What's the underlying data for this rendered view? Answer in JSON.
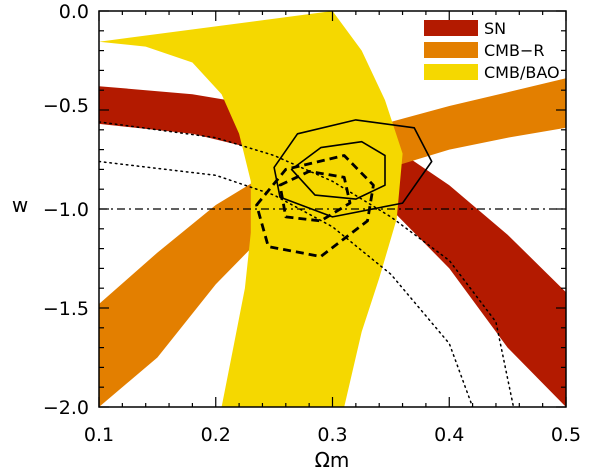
{
  "chart_data": {
    "type": "area",
    "title": "",
    "xlabel": "Ωm",
    "ylabel": "w",
    "xlim": [
      0.1,
      0.5
    ],
    "ylim": [
      -2.0,
      0.0
    ],
    "x_ticks": [
      "0.1",
      "0.2",
      "0.3",
      "0.4",
      "0.5"
    ],
    "y_ticks": [
      "0.0",
      "−0.5",
      "−1.0",
      "−1.5",
      "−2.0"
    ],
    "legend": {
      "placement": "top-right"
    },
    "series": [
      {
        "name": "SN",
        "color": "#b31a00",
        "kind": "confidence_band",
        "lower_edge": [
          [
            0.1,
            -0.57
          ],
          [
            0.18,
            -0.62
          ],
          [
            0.25,
            -0.72
          ],
          [
            0.3,
            -0.82
          ],
          [
            0.35,
            -1.0
          ],
          [
            0.4,
            -1.3
          ],
          [
            0.45,
            -1.7
          ],
          [
            0.5,
            -2.0
          ]
        ],
        "upper_edge": [
          [
            0.1,
            -0.38
          ],
          [
            0.18,
            -0.42
          ],
          [
            0.25,
            -0.49
          ],
          [
            0.3,
            -0.55
          ],
          [
            0.35,
            -0.68
          ],
          [
            0.4,
            -0.88
          ],
          [
            0.45,
            -1.13
          ],
          [
            0.5,
            -1.42
          ]
        ]
      },
      {
        "name": "CMB-R",
        "color": "#e37f00",
        "kind": "confidence_band",
        "lower_edge": [
          [
            0.1,
            -2.0
          ],
          [
            0.15,
            -1.75
          ],
          [
            0.2,
            -1.38
          ],
          [
            0.25,
            -1.08
          ],
          [
            0.3,
            -0.91
          ],
          [
            0.35,
            -0.79
          ],
          [
            0.4,
            -0.7
          ],
          [
            0.45,
            -0.64
          ],
          [
            0.5,
            -0.59
          ]
        ],
        "upper_edge": [
          [
            0.1,
            -1.48
          ],
          [
            0.15,
            -1.22
          ],
          [
            0.2,
            -0.98
          ],
          [
            0.25,
            -0.8
          ],
          [
            0.3,
            -0.66
          ],
          [
            0.35,
            -0.56
          ],
          [
            0.4,
            -0.48
          ],
          [
            0.45,
            -0.41
          ],
          [
            0.5,
            -0.34
          ]
        ]
      },
      {
        "name": "CMB/BAO",
        "color": "#f5d800",
        "kind": "confidence_band",
        "left_edge": [
          [
            0.1,
            -0.155
          ],
          [
            0.14,
            -0.18
          ],
          [
            0.18,
            -0.26
          ],
          [
            0.205,
            -0.42
          ],
          [
            0.22,
            -0.62
          ],
          [
            0.23,
            -0.86
          ],
          [
            0.23,
            -1.12
          ],
          [
            0.225,
            -1.4
          ],
          [
            0.215,
            -1.7
          ],
          [
            0.205,
            -2.0
          ]
        ],
        "right_edge": [
          [
            0.3,
            -0.0
          ],
          [
            0.325,
            -0.2
          ],
          [
            0.345,
            -0.45
          ],
          [
            0.36,
            -0.72
          ],
          [
            0.355,
            -1.05
          ],
          [
            0.34,
            -1.35
          ],
          [
            0.325,
            -1.62
          ],
          [
            0.31,
            -2.0
          ]
        ]
      },
      {
        "kind": "contours",
        "style": "solid",
        "center": [
          0.305,
          -0.83
        ],
        "levels": [
          [
            [
              0.265,
              -0.8
            ],
            [
              0.29,
              -0.69
            ],
            [
              0.325,
              -0.66
            ],
            [
              0.345,
              -0.73
            ],
            [
              0.345,
              -0.88
            ],
            [
              0.32,
              -0.95
            ],
            [
              0.285,
              -0.93
            ],
            [
              0.265,
              -0.8
            ]
          ],
          [
            [
              0.25,
              -0.79
            ],
            [
              0.27,
              -0.62
            ],
            [
              0.32,
              -0.55
            ],
            [
              0.37,
              -0.59
            ],
            [
              0.385,
              -0.76
            ],
            [
              0.36,
              -0.97
            ],
            [
              0.3,
              -1.04
            ],
            [
              0.255,
              -0.94
            ],
            [
              0.25,
              -0.79
            ]
          ]
        ]
      },
      {
        "kind": "contours",
        "style": "dashed",
        "center": [
          0.28,
          -0.94
        ],
        "levels": [
          [
            [
              0.255,
              -0.88
            ],
            [
              0.28,
              -0.81
            ],
            [
              0.31,
              -0.84
            ],
            [
              0.315,
              -0.97
            ],
            [
              0.29,
              -1.06
            ],
            [
              0.26,
              -1.04
            ],
            [
              0.255,
              -0.88
            ]
          ],
          [
            [
              0.235,
              -0.98
            ],
            [
              0.26,
              -0.8
            ],
            [
              0.31,
              -0.73
            ],
            [
              0.335,
              -0.88
            ],
            [
              0.33,
              -1.06
            ],
            [
              0.29,
              -1.24
            ],
            [
              0.245,
              -1.19
            ],
            [
              0.235,
              -0.98
            ]
          ]
        ]
      },
      {
        "kind": "guide",
        "style": "dotted",
        "points": [
          [
            0.1,
            -0.56
          ],
          [
            0.2,
            -0.64
          ],
          [
            0.25,
            -0.73
          ],
          [
            0.3,
            -0.86
          ],
          [
            0.35,
            -1.04
          ],
          [
            0.4,
            -1.26
          ],
          [
            0.44,
            -1.57
          ],
          [
            0.455,
            -2.0
          ]
        ]
      },
      {
        "kind": "guide",
        "style": "dotted",
        "points": [
          [
            0.1,
            -0.76
          ],
          [
            0.2,
            -0.83
          ],
          [
            0.25,
            -0.93
          ],
          [
            0.3,
            -1.09
          ],
          [
            0.35,
            -1.33
          ],
          [
            0.4,
            -1.68
          ],
          [
            0.42,
            -2.0
          ]
        ]
      },
      {
        "kind": "reference_line",
        "style": "dash-dot",
        "y": -1.0
      }
    ]
  },
  "legend": {
    "sn": {
      "label": "SN",
      "color": "#b31a00"
    },
    "cmbr": {
      "label": "CMB−R",
      "color": "#e37f00"
    },
    "cmbbao": {
      "label": "CMB/BAO",
      "color": "#f5d800"
    }
  }
}
